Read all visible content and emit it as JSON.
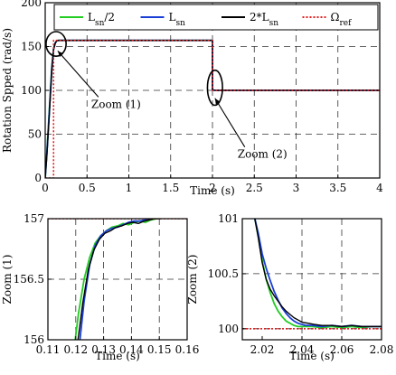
{
  "chart_data": [
    {
      "id": "main",
      "type": "line",
      "title": "",
      "xlabel": "Time (s)",
      "ylabel": "Rotation Spped (rad/s)",
      "xlim": [
        0,
        4
      ],
      "ylim": [
        0,
        200
      ],
      "xticks": [
        0,
        0.5,
        1,
        1.5,
        2,
        2.5,
        3,
        3.5,
        4
      ],
      "xtick_labels": [
        "0",
        "0.5",
        "1",
        "1.5",
        "2",
        "2.5",
        "3",
        "3.5",
        "4"
      ],
      "yticks": [
        0,
        50,
        100,
        150,
        200
      ],
      "ytick_labels": [
        "0",
        "50",
        "100",
        "150",
        "200"
      ],
      "grid": true,
      "legend": {
        "placement": "top",
        "entries": [
          {
            "base": "L",
            "sub": "sn",
            "suffix": "/2",
            "prefix": "",
            "color": "#22cc22",
            "dash": "solid"
          },
          {
            "base": "L",
            "sub": "sn",
            "suffix": "",
            "prefix": "",
            "color": "#1a3fd6",
            "dash": "solid"
          },
          {
            "base": "L",
            "sub": "sn",
            "suffix": "",
            "prefix": "2*",
            "color": "#000000",
            "dash": "solid"
          },
          {
            "base": "Ω",
            "sub": "ref",
            "suffix": "",
            "prefix": "",
            "color": "#e02020",
            "dash": "dotted"
          }
        ]
      },
      "annotations": [
        {
          "text": "Zoom (1)",
          "x": 0.55,
          "y": 80,
          "arrow_to": [
            0.15,
            145
          ]
        },
        {
          "text": "Zoom (2)",
          "x": 2.3,
          "y": 23,
          "arrow_to": [
            2.03,
            91
          ]
        }
      ],
      "zoom_regions": [
        {
          "cx": 0.13,
          "cy": 153,
          "rx": 0.12,
          "ry": 14
        },
        {
          "cx": 2.03,
          "cy": 103,
          "rx": 0.09,
          "ry": 20
        }
      ],
      "series": [
        {
          "name": "Lsn/2",
          "color": "#22cc22",
          "dash": "solid",
          "width": 1.8,
          "x": [
            0,
            0.02,
            0.04,
            0.06,
            0.08,
            0.1,
            0.12,
            0.14,
            0.16,
            2.0,
            2.0,
            2.02,
            2.04,
            2.06,
            4.0
          ],
          "y": [
            0,
            30,
            62,
            95,
            128,
            148,
            154,
            156.7,
            157,
            157,
            100.5,
            100.1,
            100.0,
            100.0,
            100.0
          ]
        },
        {
          "name": "Lsn",
          "color": "#1a3fd6",
          "dash": "solid",
          "width": 1.8,
          "x": [
            0,
            0.02,
            0.04,
            0.06,
            0.08,
            0.1,
            0.12,
            0.14,
            0.16,
            2.0,
            2.0,
            2.02,
            2.04,
            2.06,
            4.0
          ],
          "y": [
            0,
            28,
            60,
            93,
            126,
            147,
            154,
            156.8,
            157,
            157,
            100.6,
            100.2,
            100.0,
            100.0,
            100.0
          ]
        },
        {
          "name": "2*Lsn",
          "color": "#000000",
          "dash": "solid",
          "width": 1.4,
          "x": [
            0,
            0.02,
            0.04,
            0.06,
            0.08,
            0.1,
            0.12,
            0.14,
            0.16,
            2.0,
            2.0,
            2.02,
            2.04,
            2.06,
            4.0
          ],
          "y": [
            0,
            26,
            58,
            91,
            124,
            146,
            154,
            156.8,
            157,
            157,
            100.6,
            100.2,
            100.05,
            100.0,
            100.0
          ]
        },
        {
          "name": "Ωref",
          "color": "#e02020",
          "dash": "dotted",
          "width": 1.6,
          "x": [
            0,
            0.1,
            0.1,
            2.0,
            2.0,
            4.0
          ],
          "y": [
            0,
            0,
            157,
            157,
            100,
            100
          ]
        }
      ]
    },
    {
      "id": "zoom1",
      "type": "line",
      "title": "",
      "xlabel": "Time (s)",
      "ylabel": "Zoom (1)",
      "xlim": [
        0.11,
        0.16
      ],
      "ylim": [
        156,
        157
      ],
      "xticks": [
        0.11,
        0.12,
        0.13,
        0.14,
        0.15,
        0.16
      ],
      "xtick_labels": [
        "0.11",
        "0.12",
        "0.13",
        "0.14",
        "0.15",
        "0.16"
      ],
      "yticks": [
        156,
        156.5,
        157
      ],
      "ytick_labels": [
        "156",
        "156.5",
        "157"
      ],
      "grid": true,
      "series": [
        {
          "name": "Lsn/2",
          "color": "#22cc22",
          "dash": "solid",
          "width": 1.8,
          "x": [
            0.1198,
            0.121,
            0.123,
            0.125,
            0.127,
            0.129,
            0.131,
            0.133,
            0.135,
            0.137,
            0.139,
            0.141,
            0.143,
            0.145,
            0.147,
            0.149,
            0.151,
            0.153,
            0.155,
            0.157,
            0.159,
            0.16
          ],
          "y": [
            156.0,
            156.22,
            156.5,
            156.68,
            156.8,
            156.86,
            156.9,
            156.93,
            156.94,
            156.96,
            156.95,
            156.97,
            156.98,
            156.97,
            156.99,
            157.0,
            157.01,
            157.02,
            157.03,
            157.02,
            157.01,
            157.01
          ]
        },
        {
          "name": "Lsn",
          "color": "#1a3fd6",
          "dash": "solid",
          "width": 1.8,
          "x": [
            0.1215,
            0.123,
            0.125,
            0.127,
            0.129,
            0.131,
            0.133,
            0.135,
            0.137,
            0.139,
            0.141,
            0.143,
            0.145,
            0.147,
            0.149,
            0.151,
            0.153,
            0.155,
            0.157,
            0.159,
            0.16
          ],
          "y": [
            156.0,
            156.32,
            156.62,
            156.78,
            156.86,
            156.9,
            156.92,
            156.93,
            156.95,
            156.97,
            156.98,
            156.98,
            156.99,
            157.0,
            157.02,
            157.03,
            157.02,
            157.04,
            157.03,
            157.01,
            157.02
          ]
        },
        {
          "name": "2*Lsn",
          "color": "#000000",
          "dash": "solid",
          "width": 1.4,
          "x": [
            0.1208,
            0.1225,
            0.1245,
            0.1265,
            0.1285,
            0.1305,
            0.1325,
            0.1345,
            0.1365,
            0.1385,
            0.1405,
            0.1425,
            0.1445,
            0.1465,
            0.1485,
            0.1505,
            0.1525,
            0.1545,
            0.1565,
            0.1585,
            0.16
          ],
          "y": [
            156.0,
            156.3,
            156.58,
            156.74,
            156.83,
            156.88,
            156.9,
            156.93,
            156.94,
            156.96,
            156.97,
            156.96,
            156.98,
            156.99,
            157.0,
            157.0,
            157.01,
            157.01,
            157.0,
            157.01,
            157.0
          ]
        },
        {
          "name": "Ωref",
          "color": "#e02020",
          "dash": "dotted",
          "width": 1.6,
          "x": [
            0.11,
            0.16
          ],
          "y": [
            157,
            157
          ]
        }
      ]
    },
    {
      "id": "zoom2",
      "type": "line",
      "title": "",
      "xlabel": "Time (s)",
      "ylabel": "Zoom (2)",
      "xlim": [
        2.01,
        2.08
      ],
      "ylim": [
        99.9,
        101
      ],
      "xticks": [
        2.02,
        2.04,
        2.06,
        2.08
      ],
      "xtick_labels": [
        "2.02",
        "2.04",
        "2.06",
        "2.08"
      ],
      "yticks": [
        100,
        100.5,
        101
      ],
      "ytick_labels": [
        "100",
        "100.5",
        "101"
      ],
      "grid": true,
      "series": [
        {
          "name": "Lsn/2",
          "color": "#22cc22",
          "dash": "solid",
          "width": 1.8,
          "x": [
            2.0163,
            2.018,
            2.02,
            2.022,
            2.024,
            2.026,
            2.028,
            2.03,
            2.032,
            2.034,
            2.036,
            2.038,
            2.04,
            2.045,
            2.05,
            2.055,
            2.06,
            2.065,
            2.07,
            2.075,
            2.08
          ],
          "y": [
            101.0,
            100.84,
            100.62,
            100.45,
            100.33,
            100.23,
            100.16,
            100.11,
            100.07,
            100.05,
            100.03,
            100.02,
            100.02,
            100.02,
            100.01,
            100.02,
            100.01,
            100.02,
            100.01,
            100.02,
            100.02
          ]
        },
        {
          "name": "Lsn",
          "color": "#1a3fd6",
          "dash": "solid",
          "width": 1.8,
          "x": [
            2.0163,
            2.018,
            2.02,
            2.022,
            2.024,
            2.026,
            2.028,
            2.03,
            2.032,
            2.034,
            2.036,
            2.038,
            2.04,
            2.042,
            2.045,
            2.05,
            2.055,
            2.06,
            2.065,
            2.07,
            2.075,
            2.08
          ],
          "y": [
            101.0,
            100.87,
            100.68,
            100.55,
            100.44,
            100.34,
            100.26,
            100.19,
            100.14,
            100.1,
            100.07,
            100.05,
            100.04,
            100.03,
            100.03,
            100.02,
            100.03,
            100.02,
            100.03,
            100.02,
            100.02,
            100.02
          ]
        },
        {
          "name": "2*Lsn",
          "color": "#000000",
          "dash": "solid",
          "width": 1.4,
          "x": [
            2.0163,
            2.018,
            2.02,
            2.022,
            2.024,
            2.026,
            2.028,
            2.03,
            2.032,
            2.034,
            2.036,
            2.038,
            2.04,
            2.043,
            2.046,
            2.05,
            2.055,
            2.06,
            2.065,
            2.07,
            2.075,
            2.08
          ],
          "y": [
            101.0,
            100.83,
            100.6,
            100.45,
            100.36,
            100.3,
            100.25,
            100.2,
            100.16,
            100.13,
            100.1,
            100.08,
            100.06,
            100.05,
            100.04,
            100.03,
            100.03,
            100.02,
            100.03,
            100.02,
            100.02,
            100.02
          ]
        },
        {
          "name": "Ωref",
          "color": "#e02020",
          "dash": "dotted",
          "width": 1.6,
          "x": [
            2.01,
            2.08
          ],
          "y": [
            100,
            100
          ]
        }
      ]
    }
  ]
}
